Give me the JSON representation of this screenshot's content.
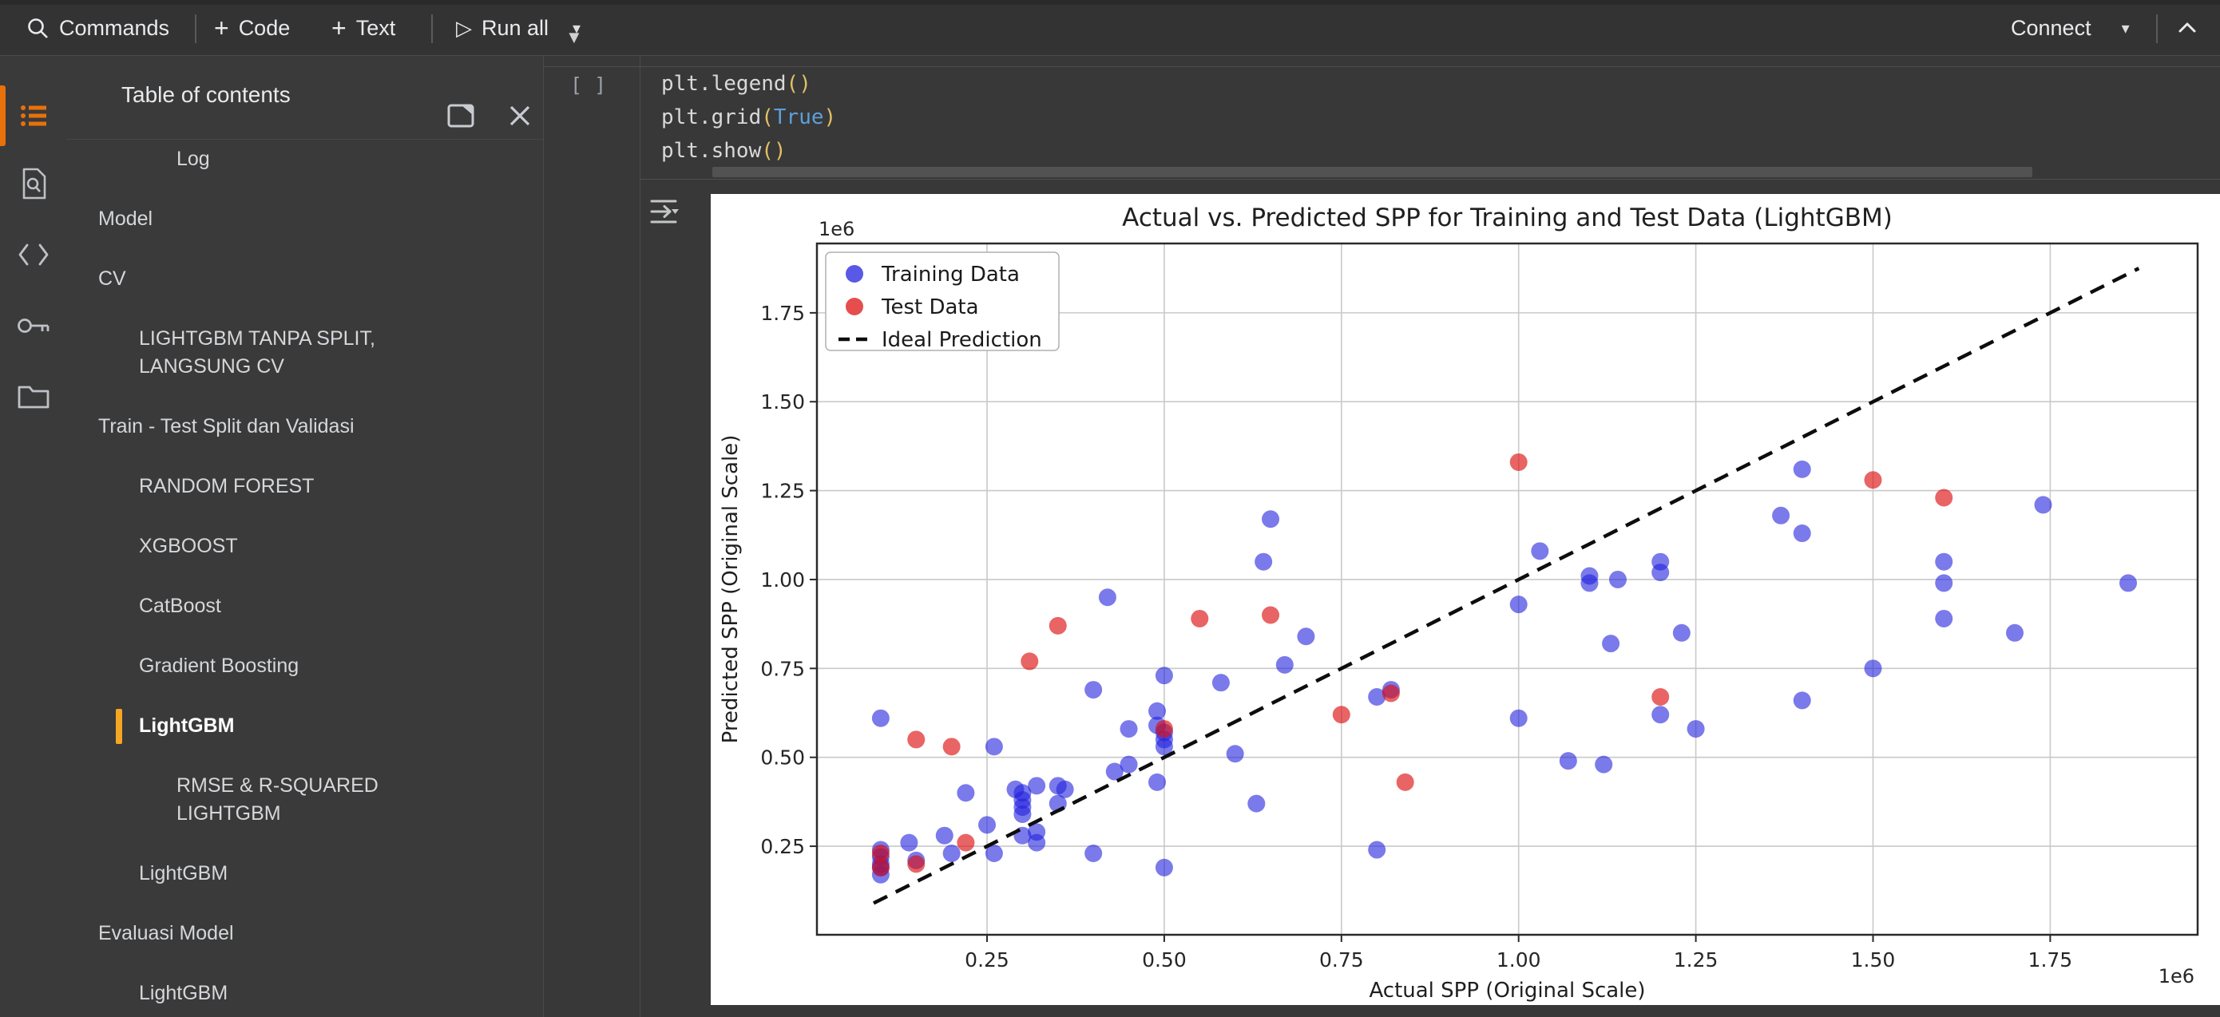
{
  "toolbar": {
    "commands": "Commands",
    "add_code": "Code",
    "add_text": "Text",
    "run_all": "Run all",
    "connect": "Connect",
    "accent_color": "#E8710A"
  },
  "sidebar": {
    "title": "Table of contents",
    "items": [
      {
        "label": "Log",
        "level": 3,
        "active": false
      },
      {
        "label": "Model",
        "level": 1,
        "active": false
      },
      {
        "label": "CV",
        "level": 1,
        "active": false
      },
      {
        "label": "LIGHTGBM TANPA SPLIT, LANGSUNG CV",
        "level": 2,
        "active": false
      },
      {
        "label": "Train - Test Split dan Validasi",
        "level": 1,
        "active": false
      },
      {
        "label": "RANDOM FOREST",
        "level": 2,
        "active": false
      },
      {
        "label": "XGBOOST",
        "level": 2,
        "active": false
      },
      {
        "label": "CatBoost",
        "level": 2,
        "active": false
      },
      {
        "label": "Gradient Boosting",
        "level": 2,
        "active": false
      },
      {
        "label": "LightGBM",
        "level": 2,
        "active": true
      },
      {
        "label": "RMSE & R-SQUARED LIGHTGBM",
        "level": 3,
        "active": false
      },
      {
        "label": "LightGBM",
        "level": 2,
        "active": false
      },
      {
        "label": "Evaluasi Model",
        "level": 1,
        "active": false
      },
      {
        "label": "LightGBM",
        "level": 2,
        "active": false
      }
    ]
  },
  "cell": {
    "marker": "[ ]",
    "code_lines": [
      [
        {
          "t": "plt.legend",
          "c": "plain"
        },
        {
          "t": "()",
          "c": "bracket"
        }
      ],
      [
        {
          "t": "plt.grid",
          "c": "plain"
        },
        {
          "t": "(",
          "c": "bracket"
        },
        {
          "t": "True",
          "c": "keyword"
        },
        {
          "t": ")",
          "c": "bracket"
        }
      ],
      [
        {
          "t": "plt.show",
          "c": "plain"
        },
        {
          "t": "()",
          "c": "bracket"
        }
      ]
    ]
  },
  "chart_data": {
    "type": "scatter",
    "title": "Actual vs. Predicted SPP for Training and Test Data (LightGBM)",
    "xlabel": "Actual SPP (Original Scale)",
    "ylabel": "Predicted SPP (Original Scale)",
    "offset_text": "1e6",
    "grid": true,
    "legend_position": "upper left",
    "xlim": [
      0.01,
      1.958
    ],
    "ylim": [
      0.001,
      1.945
    ],
    "xticks": [
      0.25,
      0.5,
      0.75,
      1.0,
      1.25,
      1.5,
      1.75
    ],
    "yticks": [
      0.25,
      0.5,
      0.75,
      1.0,
      1.25,
      1.5,
      1.75
    ],
    "tick_format": [
      "0.25",
      "0.50",
      "0.75",
      "1.00",
      "1.25",
      "1.50",
      "1.75"
    ],
    "series": [
      {
        "name": "Training Data",
        "kind": "scatter",
        "color": "#2222dd",
        "opacity": 0.6,
        "points": [
          [
            0.65,
            1.17
          ],
          [
            0.64,
            1.05
          ],
          [
            0.42,
            0.95
          ],
          [
            0.5,
            0.73
          ],
          [
            0.58,
            0.71
          ],
          [
            0.4,
            0.69
          ],
          [
            0.7,
            0.84
          ],
          [
            0.67,
            0.76
          ],
          [
            0.1,
            0.61
          ],
          [
            0.26,
            0.53
          ],
          [
            0.49,
            0.63
          ],
          [
            0.49,
            0.59
          ],
          [
            0.5,
            0.57
          ],
          [
            0.5,
            0.55
          ],
          [
            0.5,
            0.53
          ],
          [
            0.45,
            0.58
          ],
          [
            0.45,
            0.48
          ],
          [
            0.43,
            0.46
          ],
          [
            0.49,
            0.43
          ],
          [
            0.6,
            0.51
          ],
          [
            0.63,
            0.37
          ],
          [
            0.22,
            0.4
          ],
          [
            0.29,
            0.41
          ],
          [
            0.3,
            0.4
          ],
          [
            0.3,
            0.38
          ],
          [
            0.3,
            0.36
          ],
          [
            0.3,
            0.34
          ],
          [
            0.32,
            0.42
          ],
          [
            0.35,
            0.42
          ],
          [
            0.36,
            0.41
          ],
          [
            0.35,
            0.37
          ],
          [
            0.25,
            0.31
          ],
          [
            0.3,
            0.28
          ],
          [
            0.32,
            0.29
          ],
          [
            0.32,
            0.26
          ],
          [
            0.2,
            0.23
          ],
          [
            0.14,
            0.26
          ],
          [
            0.19,
            0.28
          ],
          [
            0.26,
            0.23
          ],
          [
            0.4,
            0.23
          ],
          [
            0.5,
            0.19
          ],
          [
            0.1,
            0.24
          ],
          [
            0.1,
            0.22
          ],
          [
            0.1,
            0.2
          ],
          [
            0.1,
            0.19
          ],
          [
            0.1,
            0.17
          ],
          [
            0.15,
            0.21
          ],
          [
            1.03,
            1.08
          ],
          [
            1.1,
            1.01
          ],
          [
            1.1,
            0.99
          ],
          [
            1.14,
            1.0
          ],
          [
            1.2,
            1.05
          ],
          [
            1.2,
            1.02
          ],
          [
            1.0,
            0.93
          ],
          [
            1.13,
            0.82
          ],
          [
            1.23,
            0.85
          ],
          [
            0.8,
            0.67
          ],
          [
            0.82,
            0.69
          ],
          [
            1.0,
            0.61
          ],
          [
            1.2,
            0.62
          ],
          [
            1.25,
            0.58
          ],
          [
            1.07,
            0.49
          ],
          [
            1.12,
            0.48
          ],
          [
            0.8,
            0.24
          ],
          [
            1.4,
            1.31
          ],
          [
            1.74,
            1.21
          ],
          [
            1.37,
            1.18
          ],
          [
            1.4,
            1.13
          ],
          [
            1.6,
            1.05
          ],
          [
            1.6,
            0.99
          ],
          [
            1.6,
            0.89
          ],
          [
            1.7,
            0.85
          ],
          [
            1.86,
            0.99
          ],
          [
            1.5,
            0.75
          ],
          [
            1.4,
            0.66
          ]
        ]
      },
      {
        "name": "Test Data",
        "kind": "scatter",
        "color": "#dd1111",
        "opacity": 0.65,
        "points": [
          [
            1.0,
            1.33
          ],
          [
            0.35,
            0.87
          ],
          [
            0.31,
            0.77
          ],
          [
            0.55,
            0.89
          ],
          [
            0.65,
            0.9
          ],
          [
            0.15,
            0.55
          ],
          [
            0.2,
            0.53
          ],
          [
            0.5,
            0.58
          ],
          [
            0.22,
            0.26
          ],
          [
            0.1,
            0.23
          ],
          [
            0.1,
            0.19
          ],
          [
            0.15,
            0.2
          ],
          [
            1.5,
            1.28
          ],
          [
            1.6,
            1.23
          ],
          [
            0.75,
            0.62
          ],
          [
            0.82,
            0.68
          ],
          [
            1.2,
            0.67
          ],
          [
            0.84,
            0.43
          ]
        ]
      },
      {
        "name": "Ideal Prediction",
        "kind": "line",
        "dashed": true,
        "color": "#0d0d0d",
        "points": [
          [
            0.09,
            0.09
          ],
          [
            1.875,
            1.875
          ]
        ]
      }
    ]
  }
}
